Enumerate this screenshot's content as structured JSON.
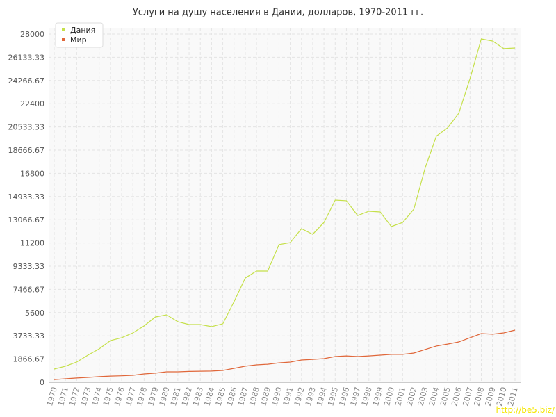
{
  "chart_data": {
    "type": "line",
    "title": "Услуги на душу населения в Дании, долларов, 1970-2011 гг.",
    "categories": [
      "1970",
      "1971",
      "1972",
      "1973",
      "1974",
      "1975",
      "1976",
      "1977",
      "1978",
      "1979",
      "1980",
      "1981",
      "1982",
      "1983",
      "1984",
      "1985",
      "1986",
      "1987",
      "1988",
      "1989",
      "1990",
      "1991",
      "1992",
      "1993",
      "1994",
      "1995",
      "1996",
      "1997",
      "1998",
      "1999",
      "2000",
      "2001",
      "2002",
      "2003",
      "2004",
      "2005",
      "2006",
      "2007",
      "2008",
      "2009",
      "2010",
      "2011"
    ],
    "series": [
      {
        "name": "Дания",
        "color": "#c5e04a",
        "values": [
          1060,
          1290,
          1620,
          2180,
          2680,
          3350,
          3580,
          3970,
          4530,
          5250,
          5420,
          4860,
          4640,
          4640,
          4470,
          4700,
          6480,
          8380,
          8940,
          8940,
          11070,
          11230,
          12350,
          11900,
          12850,
          14640,
          14590,
          13410,
          13750,
          13690,
          12520,
          12850,
          13920,
          17210,
          19790,
          20460,
          21630,
          24420,
          27610,
          27440,
          26830,
          26880
        ]
      },
      {
        "name": "Мир",
        "color": "#e0673a",
        "values": [
          220,
          280,
          340,
          390,
          450,
          500,
          520,
          560,
          670,
          730,
          840,
          840,
          870,
          890,
          900,
          950,
          1120,
          1290,
          1400,
          1450,
          1560,
          1620,
          1790,
          1840,
          1900,
          2070,
          2120,
          2070,
          2120,
          2180,
          2240,
          2240,
          2350,
          2630,
          2910,
          3070,
          3240,
          3580,
          3910,
          3860,
          3970,
          4190
        ]
      }
    ],
    "ylim": [
      0,
      28000
    ],
    "yticks": [
      0,
      1866.67,
      3733.33,
      5600,
      7466.67,
      9333.33,
      11200,
      13066.67,
      14933.33,
      16800,
      18666.67,
      20533.33,
      22400,
      24266.67,
      26133.33,
      28000
    ],
    "grid": true,
    "legend": "top-left",
    "watermark": "http://be5.biz/"
  }
}
